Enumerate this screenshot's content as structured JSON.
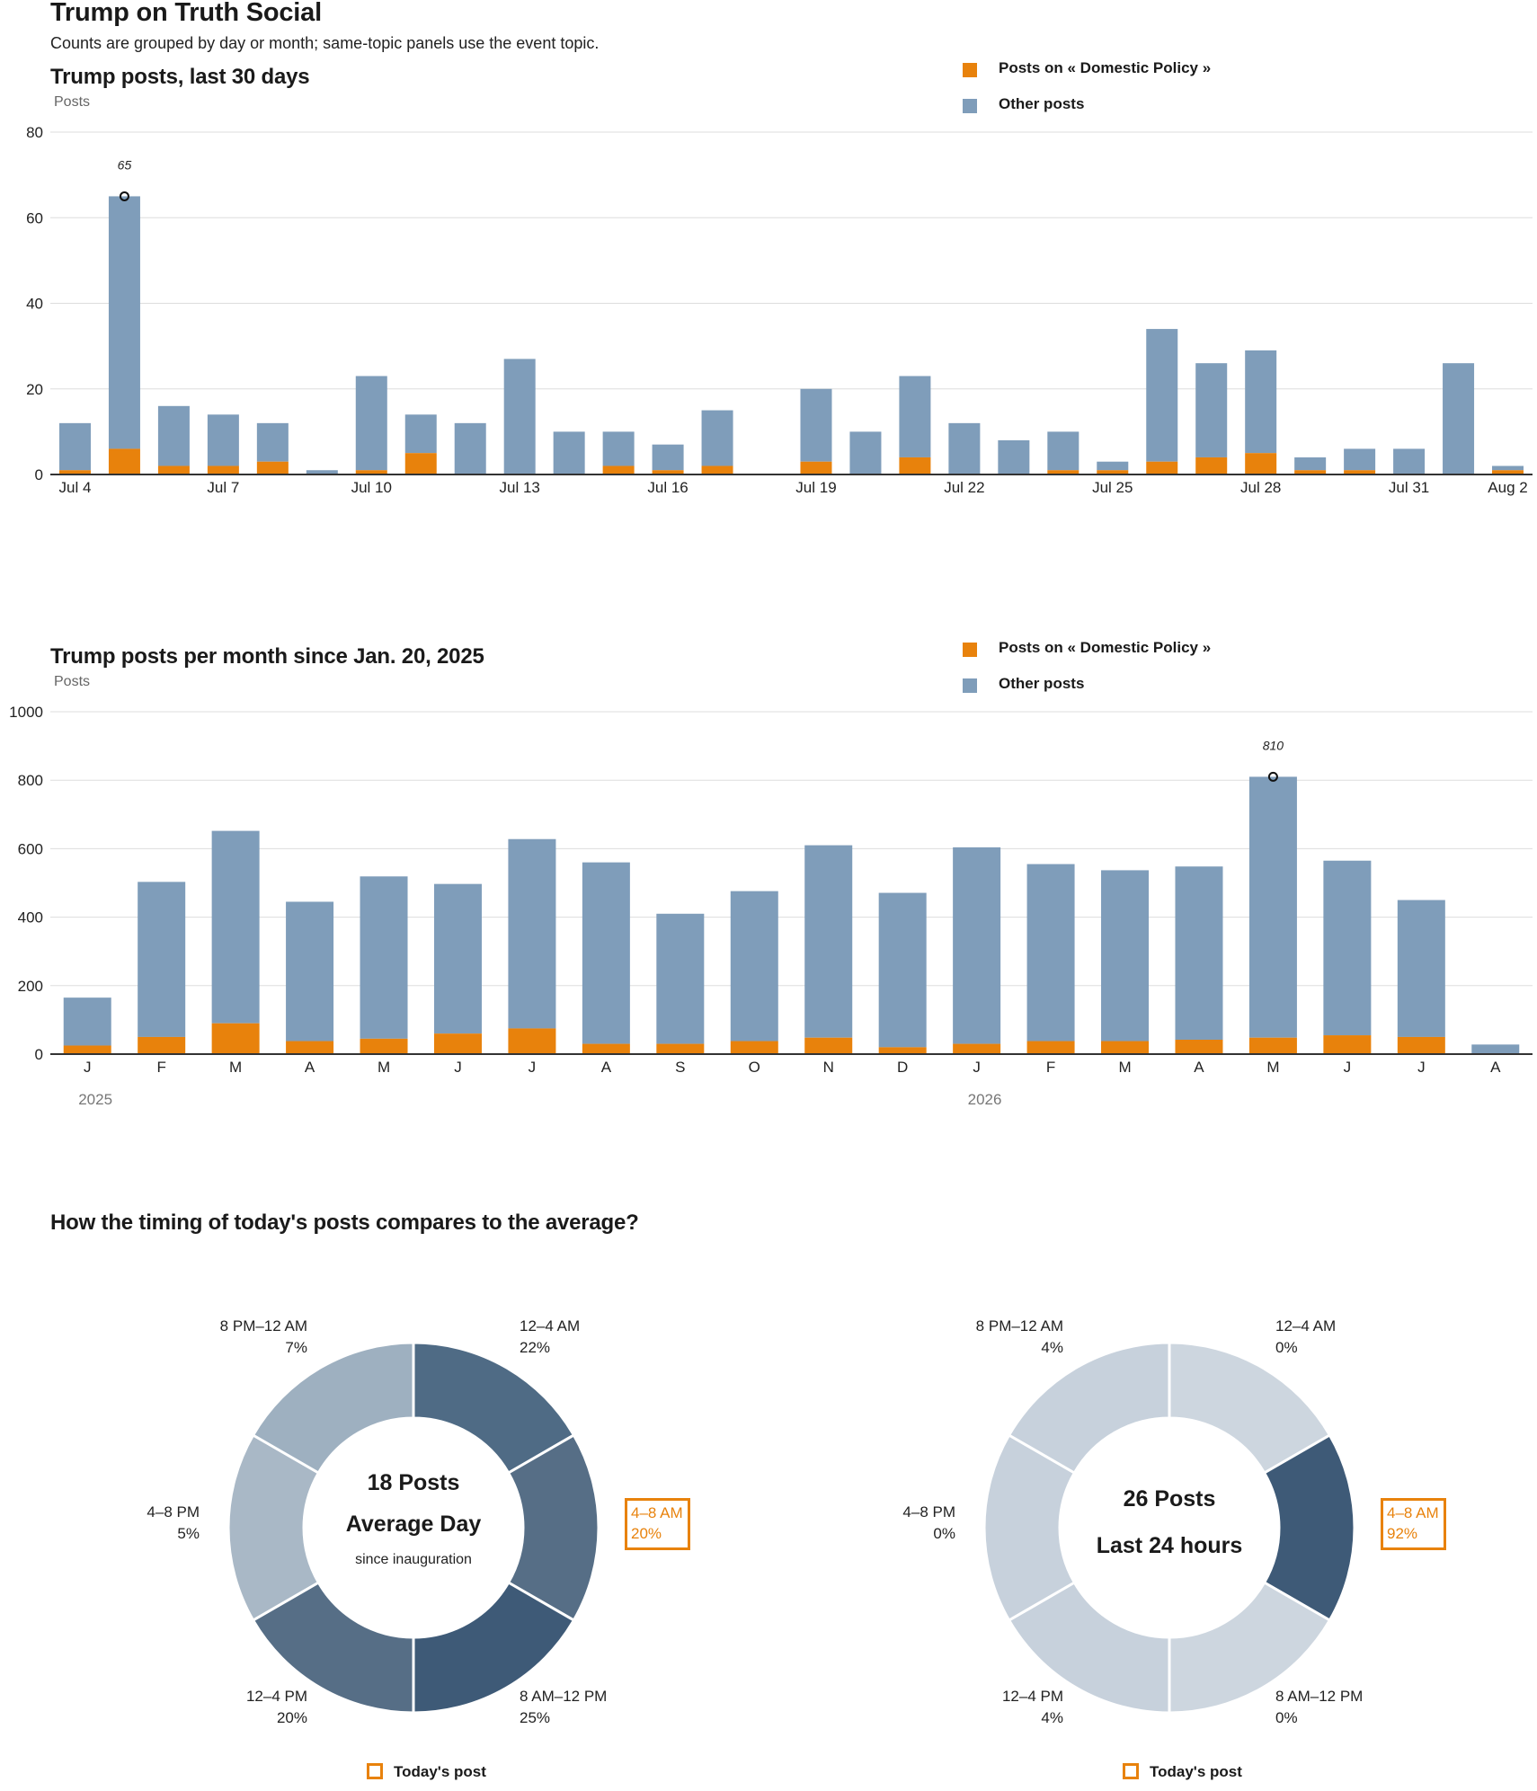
{
  "page": {
    "title": "Trump on Truth Social",
    "subtitle": "Counts are grouped by day or month; same-topic panels use the event topic."
  },
  "colors": {
    "topic": "#e8820c",
    "other": "#7f9dba",
    "axis": "#333333",
    "grid": "#dddddd",
    "donut_avg": [
      "#4f6b85",
      "#566e86",
      "#3e5a77",
      "#566e86",
      "#a9b8c6",
      "#9eb0c0"
    ],
    "donut_today": [
      "#cdd6df",
      "#3e5a77",
      "#cdd6df",
      "#c7d1dc",
      "#c7d1dc",
      "#c7d1dc"
    ]
  },
  "chart_data": [
    {
      "type": "bar",
      "stacked": true,
      "title": "Trump posts, last 30 days",
      "ylabel": "Posts",
      "ylim": [
        0,
        80
      ],
      "yticks": [
        0,
        20,
        40,
        60,
        80
      ],
      "grid": true,
      "legend_position": "top-right",
      "categories": [
        "Jul 4",
        "Jul 5",
        "Jul 6",
        "Jul 7",
        "Jul 8",
        "Jul 9",
        "Jul 10",
        "Jul 11",
        "Jul 12",
        "Jul 13",
        "Jul 14",
        "Jul 15",
        "Jul 16",
        "Jul 17",
        "Jul 18",
        "Jul 19",
        "Jul 20",
        "Jul 21",
        "Jul 22",
        "Jul 23",
        "Jul 24",
        "Jul 25",
        "Jul 26",
        "Jul 27",
        "Jul 28",
        "Jul 29",
        "Jul 30",
        "Jul 31",
        "Aug 1",
        "Aug 2"
      ],
      "x_tick_labels": [
        "Jul 4",
        "",
        "",
        "Jul 7",
        "",
        "",
        "Jul 10",
        "",
        "",
        "Jul 13",
        "",
        "",
        "Jul 16",
        "",
        "",
        "Jul 19",
        "",
        "",
        "Jul 22",
        "",
        "",
        "Jul 25",
        "",
        "",
        "Jul 28",
        "",
        "",
        "Jul 31",
        "",
        "Aug 2"
      ],
      "series": [
        {
          "name": "Posts on « Domestic Policy »",
          "values": [
            1,
            6,
            2,
            2,
            3,
            0,
            1,
            5,
            0,
            0,
            0,
            2,
            1,
            2,
            0,
            3,
            0,
            4,
            0,
            0,
            1,
            1,
            3,
            4,
            5,
            1,
            1,
            0,
            0,
            1
          ]
        },
        {
          "name": "Other posts",
          "values": [
            11,
            59,
            14,
            12,
            9,
            1,
            22,
            9,
            12,
            27,
            10,
            8,
            6,
            13,
            0,
            17,
            10,
            19,
            12,
            8,
            9,
            2,
            31,
            22,
            24,
            3,
            5,
            6,
            26,
            1
          ]
        }
      ],
      "annotations": [
        {
          "category": "Jul 5",
          "label": "65",
          "value": 65
        }
      ],
      "legend": {
        "topic": "Posts on « Domestic Policy »",
        "other": "Other posts"
      }
    },
    {
      "type": "bar",
      "stacked": true,
      "title": "Trump posts per month since Jan. 20, 2025",
      "ylabel": "Posts",
      "ylim": [
        0,
        1000
      ],
      "yticks": [
        0,
        200,
        400,
        600,
        800,
        1000
      ],
      "grid": true,
      "legend_position": "top-right",
      "categories": [
        "J",
        "F",
        "M",
        "A",
        "M",
        "J",
        "J",
        "A",
        "S",
        "O",
        "N",
        "D",
        "J",
        "F",
        "M",
        "A",
        "M",
        "J",
        "J",
        "A"
      ],
      "year_labels": [
        {
          "index": 0,
          "label": "2025"
        },
        {
          "index": 12,
          "label": "2026"
        }
      ],
      "series": [
        {
          "name": "Posts on « Domestic Policy »",
          "values": [
            25,
            50,
            90,
            38,
            45,
            60,
            75,
            30,
            30,
            38,
            48,
            20,
            30,
            38,
            38,
            42,
            48,
            55,
            50,
            0
          ]
        },
        {
          "name": "Other posts",
          "values": [
            140,
            453,
            562,
            407,
            474,
            437,
            553,
            530,
            380,
            438,
            562,
            451,
            574,
            517,
            499,
            506,
            762,
            510,
            400,
            28
          ]
        }
      ],
      "annotations": [
        {
          "category_index": 16,
          "label": "810",
          "value": 810
        }
      ],
      "legend": {
        "topic": "Posts on « Domestic Policy »",
        "other": "Other posts"
      }
    },
    {
      "type": "pie",
      "donut": true,
      "title": "How the timing of today's posts compares to the average?",
      "center_big_1": "18 Posts",
      "center_big_2": "Average Day",
      "center_small": "since inauguration",
      "slices": [
        {
          "label": "12–4 AM",
          "value": 22,
          "pct": "22%"
        },
        {
          "label": "4–8 AM",
          "value": 20,
          "pct": "20%",
          "highlight": true
        },
        {
          "label": "8 AM–12 PM",
          "value": 25,
          "pct": "25%"
        },
        {
          "label": "12–4 PM",
          "value": 20,
          "pct": "20%"
        },
        {
          "label": "4–8 PM",
          "value": 5,
          "pct": "5%"
        },
        {
          "label": "8 PM–12 AM",
          "value": 7,
          "pct": "7%"
        }
      ],
      "legend": "Today's post"
    },
    {
      "type": "pie",
      "donut": true,
      "center_big_1": "26 Posts",
      "center_big_2": "Last 24 hours",
      "slices": [
        {
          "label": "12–4 AM",
          "value": 0,
          "pct": "0%"
        },
        {
          "label": "4–8 AM",
          "value": 92,
          "pct": "92%",
          "highlight": true
        },
        {
          "label": "8 AM–12 PM",
          "value": 0,
          "pct": "0%"
        },
        {
          "label": "12–4 PM",
          "value": 4,
          "pct": "4%"
        },
        {
          "label": "4–8 PM",
          "value": 0,
          "pct": "0%"
        },
        {
          "label": "8 PM–12 AM",
          "value": 4,
          "pct": "4%"
        }
      ],
      "legend": "Today's post"
    }
  ]
}
